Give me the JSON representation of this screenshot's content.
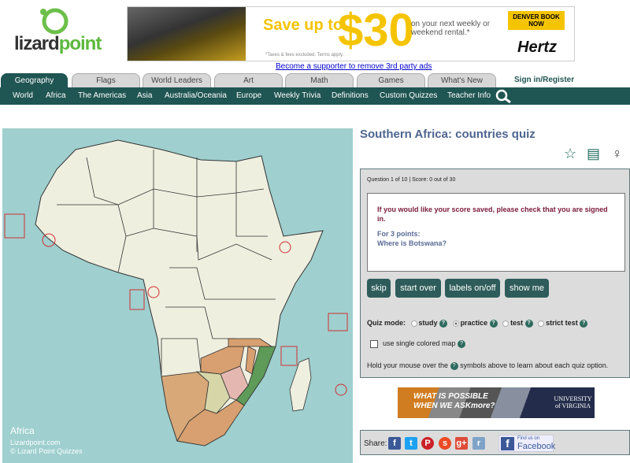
{
  "logo": {
    "text_a": "lizard",
    "text_b": "point"
  },
  "ad_top": {
    "headline": "Save up to",
    "amount": "$30",
    "sub": "on your next weekly or weekend rental.*",
    "fine": "*Taxes & fees excluded. Terms apply.",
    "cta": "DENVER BOOK NOW",
    "brand": "Hertz"
  },
  "supporter_link": "Become a supporter to remove 3rd party ads",
  "tabs": [
    {
      "label": "Geography",
      "active": true
    },
    {
      "label": "Flags"
    },
    {
      "label": "World Leaders"
    },
    {
      "label": "Art"
    },
    {
      "label": "Math"
    },
    {
      "label": "Games"
    },
    {
      "label": "What's New"
    }
  ],
  "signin": "Sign in/Register",
  "nav": [
    "World",
    "Africa",
    "The Americas",
    "Asia",
    "Australia/Oceania",
    "Europe",
    "Weekly Trivia",
    "Definitions",
    "Custom Quizzes",
    "Teacher Info"
  ],
  "map": {
    "caption": "Africa",
    "site": "Lizardpoint.com",
    "copyright": "© Lizard Point Quizzes",
    "ocean_color": "#9fcfcf",
    "land_color": "#efefe0"
  },
  "quiz": {
    "title": "Southern Africa: countries quiz",
    "status": "Question 1 of 10 | Score: 0 out of 30",
    "warning": "If you would like your score saved, please check that you are signed in.",
    "points": "For 3 points:",
    "question": "Where is Botswana?",
    "buttons": [
      "skip",
      "start over",
      "labels on/off",
      "show me"
    ],
    "mode_label": "Quiz mode:",
    "modes": [
      "study",
      "practice",
      "test",
      "strict test"
    ],
    "selected_mode": "practice",
    "single_color": "use single colored map",
    "single_color_checked": false,
    "help_text_a": "Hold your mouse over the",
    "help_text_b": "symbols above to learn about each quiz option."
  },
  "ad_bottom": {
    "text1": "WHAT IS POSSIBLE",
    "text2": "WHEN WE ASKmore?",
    "brand": "UNIVERSITY of VIRGINIA"
  },
  "share": {
    "label": "Share:",
    "networks": [
      "facebook",
      "twitter",
      "pinterest",
      "stumbleupon",
      "google-plus",
      "reddit"
    ],
    "fb_small": "Find us on",
    "fb_big": "Facebook"
  }
}
